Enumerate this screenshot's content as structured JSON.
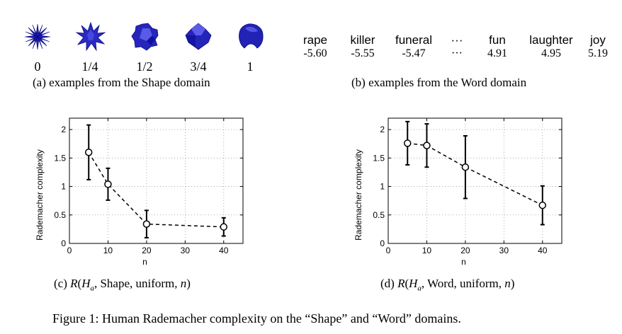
{
  "shape_panel": {
    "labels": [
      "0",
      "1/4",
      "1/2",
      "3/4",
      "1"
    ],
    "caption": "(a) examples from the Shape domain",
    "color": "#1a1aa8"
  },
  "word_panel": {
    "words": [
      "rape",
      "killer",
      "funeral",
      "···",
      "fun",
      "laughter",
      "joy"
    ],
    "scores": [
      "-5.60",
      "-5.55",
      "-5.47",
      "···",
      "4.91",
      "4.95",
      "5.19"
    ],
    "caption": "(b) examples from the Word domain"
  },
  "chart_data": [
    {
      "type": "line",
      "ylabel": "Rademacher complexity",
      "xlabel": "n",
      "xlim": [
        0,
        45
      ],
      "ylim": [
        0,
        2.2
      ],
      "xticks": [
        0,
        10,
        20,
        30,
        40
      ],
      "yticks": [
        0,
        0.5,
        1,
        1.5,
        2
      ],
      "ytick_labels": [
        "0",
        "0.5",
        "1",
        "1.5",
        "2"
      ],
      "grid": true,
      "x": [
        5,
        10,
        20,
        40
      ],
      "y": [
        1.6,
        1.04,
        0.34,
        0.29
      ],
      "err": [
        0.48,
        0.28,
        0.24,
        0.16
      ],
      "caption_prefix": "(c) ",
      "caption_rest": "Shape",
      "caption": "(c) R(Ha, Shape, uniform, n)"
    },
    {
      "type": "line",
      "ylabel": "Rademacher complexity",
      "xlabel": "n",
      "xlim": [
        0,
        45
      ],
      "ylim": [
        0,
        2.2
      ],
      "xticks": [
        0,
        10,
        20,
        30,
        40
      ],
      "yticks": [
        0,
        0.5,
        1,
        1.5,
        2
      ],
      "ytick_labels": [
        "0",
        "0.5",
        "1",
        "1.5",
        "2"
      ],
      "grid": true,
      "x": [
        5,
        10,
        20,
        40
      ],
      "y": [
        1.76,
        1.72,
        1.34,
        0.67
      ],
      "err": [
        0.38,
        0.38,
        0.55,
        0.34
      ],
      "caption_prefix": "(d) ",
      "caption_rest": "Word",
      "caption": "(d) R(Ha, Word, uniform, n)"
    }
  ],
  "figure_caption": "Figure 1: Human Rademacher complexity on the “Shape” and “Word” domains."
}
